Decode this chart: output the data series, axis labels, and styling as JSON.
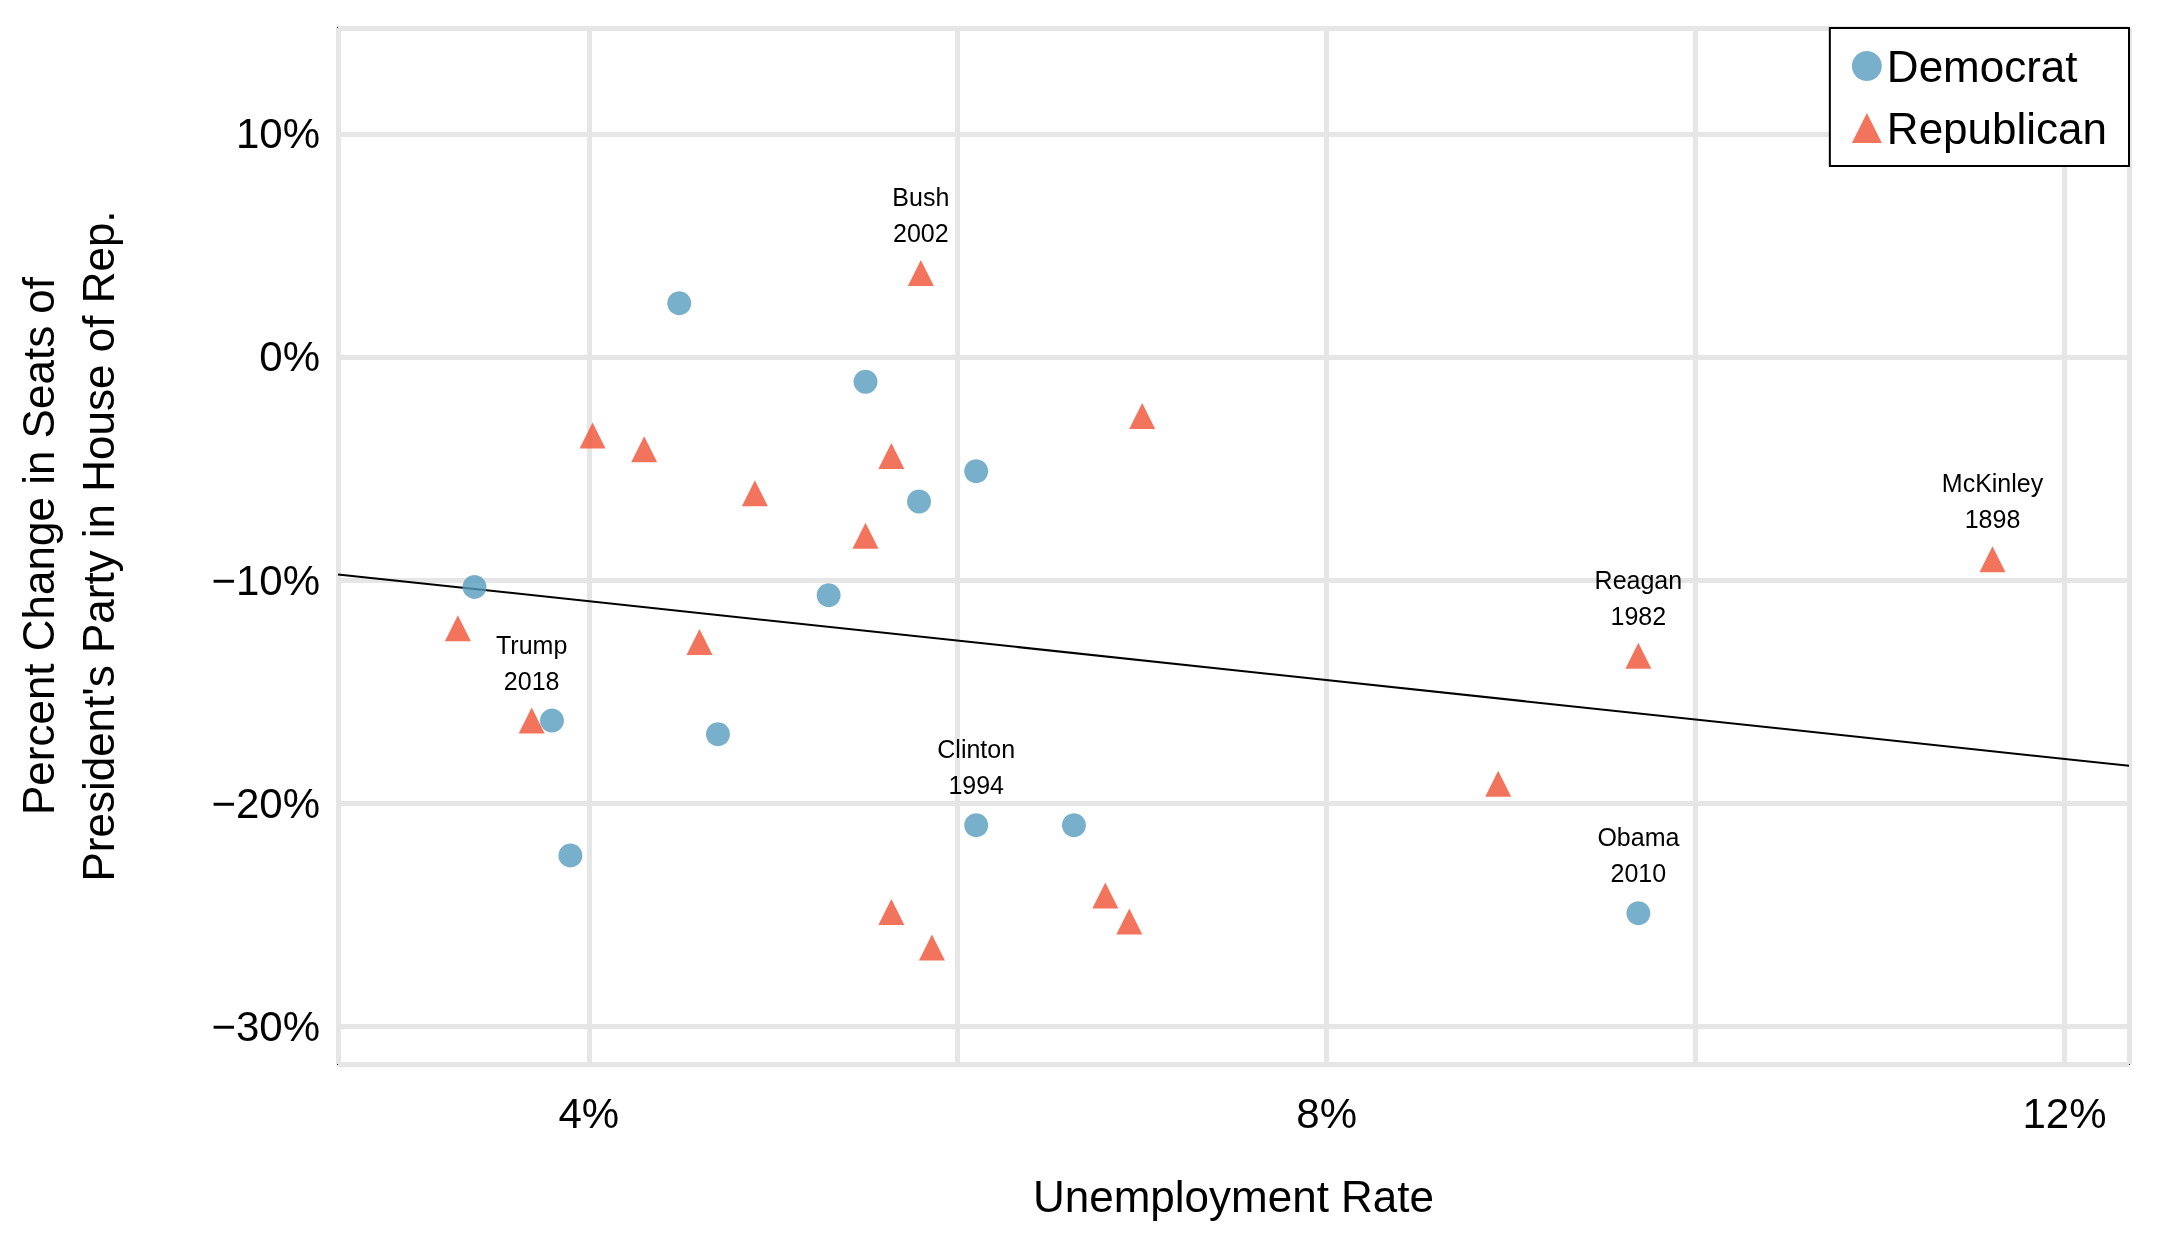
{
  "chart_data": {
    "type": "scatter",
    "xlabel": "Unemployment Rate",
    "ylabel": "Percent Change in Seats of\nPresident's Party in House of Rep.",
    "xlim": [
      2.64,
      12.35
    ],
    "ylim": [
      -31.7,
      14.75
    ],
    "xticks": [
      {
        "value": 4,
        "label": "4%"
      },
      {
        "value": 8,
        "label": "8%"
      },
      {
        "value": 12,
        "label": "12%"
      }
    ],
    "yticks": [
      {
        "value": -30,
        "label": "−30%"
      },
      {
        "value": -20,
        "label": "−20%"
      },
      {
        "value": -10,
        "label": "−10%"
      },
      {
        "value": 0,
        "label": "0%"
      },
      {
        "value": 10,
        "label": "10%"
      }
    ],
    "grid": true,
    "legend": "top right",
    "series": [
      {
        "name": "Democrat",
        "color": "#569bbd",
        "marker": "circle",
        "x": [
          4.49,
          5.5,
          6.1,
          5.79,
          3.38,
          5.3,
          3.8,
          4.7,
          3.9,
          6.1,
          6.63,
          9.69
        ],
        "values": [
          2.41,
          -1.11,
          -5.12,
          -6.48,
          -10.31,
          -10.68,
          -16.3,
          -16.91,
          -22.35,
          -20.99,
          -20.99,
          -24.94
        ]
      },
      {
        "name": "Republican",
        "color": "#f05133",
        "marker": "triangle",
        "x": [
          5.8,
          7.0,
          4.02,
          4.3,
          5.64,
          4.9,
          5.5,
          11.61,
          3.29,
          4.6,
          9.69,
          3.69,
          8.93,
          5.64,
          6.8,
          6.93,
          5.86
        ],
        "values": [
          3.77,
          -2.65,
          -3.52,
          -4.14,
          -4.44,
          -6.11,
          -8.02,
          -9.07,
          -12.16,
          -12.78,
          -13.4,
          -16.3,
          -19.14,
          -24.88,
          -24.14,
          -25.31,
          -26.48
        ]
      },
      {
        "type": "line",
        "color": "#000000",
        "marker": "none",
        "x": [
          2.64,
          12.35
        ],
        "values": [
          -9.75,
          -18.33
        ]
      }
    ],
    "annotations": [
      {
        "text": "Bush\n2002",
        "x": 5.8,
        "y": 3.77
      },
      {
        "text": "Trump\n2018",
        "x": 3.69,
        "y": -16.3
      },
      {
        "text": "Clinton\n1994",
        "x": 6.1,
        "y": -20.99
      },
      {
        "text": "Reagan\n1982",
        "x": 9.69,
        "y": -13.4
      },
      {
        "text": "McKinley\n1898",
        "x": 11.61,
        "y": -9.07
      },
      {
        "text": "Obama\n2010",
        "x": 9.69,
        "y": -24.94
      }
    ]
  }
}
